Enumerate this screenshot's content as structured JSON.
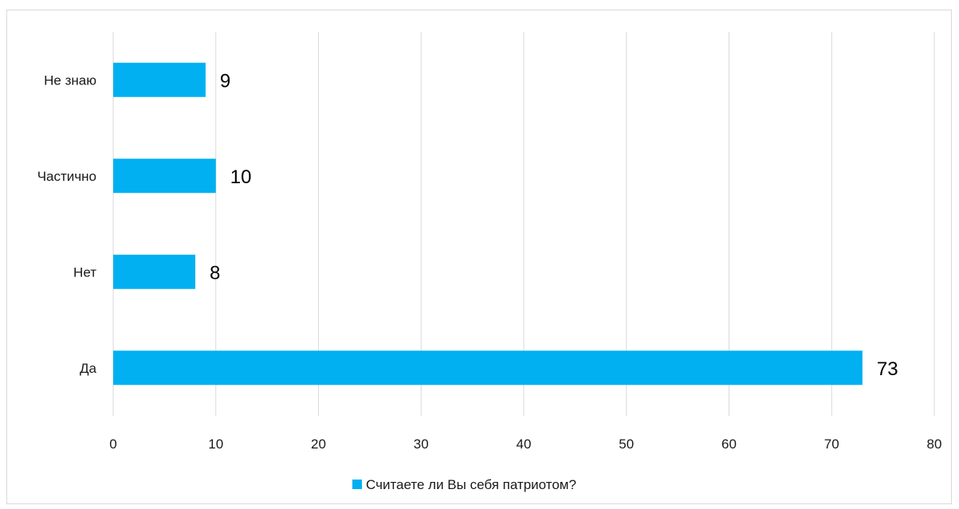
{
  "chart_data": {
    "type": "bar",
    "orientation": "horizontal",
    "categories": [
      "Да",
      "Нет",
      "Частично",
      "Не знаю"
    ],
    "series": [
      {
        "name": "Считаете ли Вы себя патриотом?",
        "values": [
          73,
          8,
          10,
          9
        ],
        "color": "#00B0F0"
      }
    ],
    "xlim": [
      0,
      80
    ],
    "xticks": [
      0,
      10,
      20,
      30,
      40,
      50,
      60,
      70,
      80
    ],
    "grid": "vertical",
    "gridColor": "#d9d9d9",
    "data_labels": true,
    "legend": "bottom-center"
  }
}
